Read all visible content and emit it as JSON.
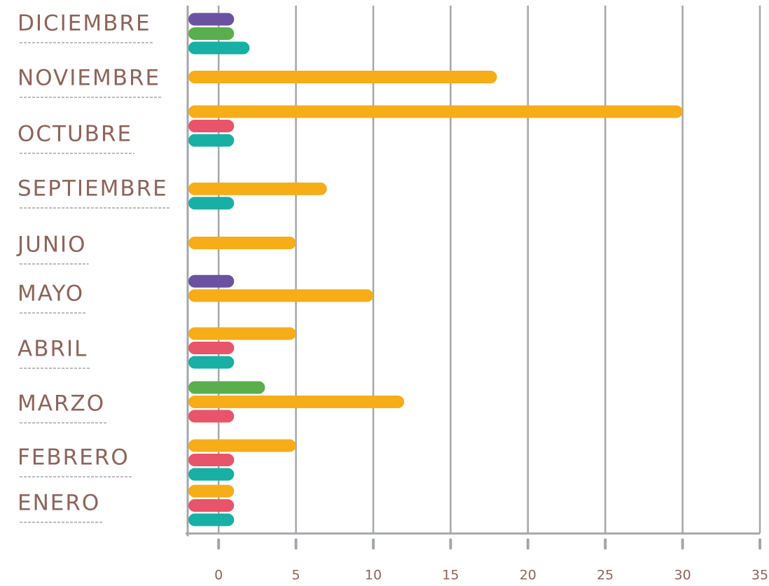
{
  "chart_data": {
    "type": "bar",
    "orientation": "horizontal",
    "categories": [
      "DICIEMBRE",
      "NOVIEMBRE",
      "OCTUBRE",
      "SEPTIEMBRE",
      "JUNIO",
      "MAYO",
      "ABRIL",
      "MARZO",
      "FEBRERO",
      "ENERO"
    ],
    "series": [
      {
        "color": "#6b52a1",
        "values": [
          1,
          null,
          null,
          null,
          null,
          1,
          null,
          null,
          null,
          null
        ]
      },
      {
        "color": "#5aae4e",
        "values": [
          1,
          null,
          null,
          null,
          null,
          null,
          null,
          3,
          null,
          null
        ]
      },
      {
        "color": "#f6ad18",
        "values": [
          null,
          18,
          30,
          7,
          5,
          10,
          5,
          12,
          5,
          1
        ]
      },
      {
        "color": "#e8546a",
        "values": [
          null,
          null,
          1,
          null,
          null,
          null,
          1,
          1,
          1,
          1
        ]
      },
      {
        "color": "#18b0a4",
        "values": [
          2,
          null,
          1,
          1,
          null,
          null,
          1,
          null,
          1,
          1
        ]
      }
    ],
    "xlim": [
      -2,
      35
    ],
    "xticks": [
      0,
      5,
      10,
      15,
      20,
      25,
      30,
      35
    ],
    "grid": true
  }
}
